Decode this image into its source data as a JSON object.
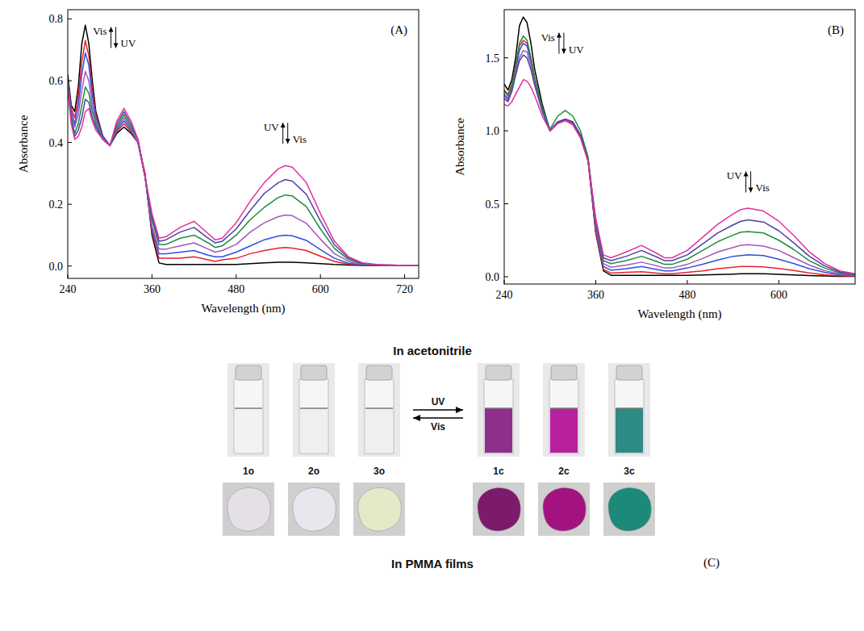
{
  "chart_data": [
    {
      "type": "line",
      "panel": "(A)",
      "x_label": "Wavelength (nm)",
      "y_label": "Absorbance",
      "xlim": [
        240,
        740
      ],
      "xticks": [
        240,
        360,
        480,
        600,
        720
      ],
      "ylim": [
        -0.04,
        0.83
      ],
      "yticks": [
        {
          "value": 0,
          "label": "0.0"
        },
        0.2,
        0.4,
        0.6,
        0.8
      ],
      "grid": false,
      "x": [
        240,
        245,
        250,
        255,
        260,
        265,
        270,
        275,
        280,
        290,
        300,
        310,
        320,
        330,
        340,
        350,
        360,
        370,
        380,
        400,
        420,
        440,
        450,
        460,
        480,
        500,
        520,
        540,
        550,
        560,
        580,
        600,
        620,
        640,
        660,
        680,
        700,
        720,
        740
      ],
      "series": [
        {
          "color": "#000000",
          "values": [
            0.62,
            0.52,
            0.5,
            0.58,
            0.72,
            0.78,
            0.72,
            0.6,
            0.5,
            0.42,
            0.39,
            0.43,
            0.45,
            0.43,
            0.4,
            0.3,
            0.1,
            0.01,
            0.005,
            0.005,
            0.005,
            0.005,
            0.005,
            0.005,
            0.005,
            0.008,
            0.01,
            0.012,
            0.012,
            0.012,
            0.01,
            0.008,
            0.005,
            0.003,
            0.002,
            0.002,
            0.002,
            0.002,
            0.002
          ]
        },
        {
          "color": "#e8212a",
          "values": [
            0.61,
            0.51,
            0.48,
            0.55,
            0.66,
            0.73,
            0.68,
            0.57,
            0.49,
            0.42,
            0.39,
            0.435,
            0.46,
            0.435,
            0.4,
            0.3,
            0.11,
            0.025,
            0.025,
            0.025,
            0.03,
            0.02,
            0.015,
            0.02,
            0.025,
            0.04,
            0.05,
            0.058,
            0.06,
            0.058,
            0.05,
            0.032,
            0.015,
            0.006,
            0.003,
            0.002,
            0.002,
            0.002,
            0.002
          ]
        },
        {
          "color": "#2f4fe0",
          "values": [
            0.6,
            0.5,
            0.46,
            0.52,
            0.62,
            0.69,
            0.65,
            0.55,
            0.48,
            0.42,
            0.39,
            0.44,
            0.47,
            0.44,
            0.4,
            0.29,
            0.12,
            0.04,
            0.04,
            0.045,
            0.05,
            0.035,
            0.03,
            0.03,
            0.045,
            0.065,
            0.085,
            0.097,
            0.1,
            0.098,
            0.083,
            0.053,
            0.025,
            0.009,
            0.004,
            0.003,
            0.002,
            0.002,
            0.002
          ]
        },
        {
          "color": "#a455bd",
          "values": [
            0.6,
            0.49,
            0.45,
            0.49,
            0.57,
            0.63,
            0.6,
            0.52,
            0.47,
            0.41,
            0.39,
            0.445,
            0.48,
            0.445,
            0.4,
            0.29,
            0.13,
            0.055,
            0.055,
            0.065,
            0.075,
            0.055,
            0.045,
            0.05,
            0.07,
            0.11,
            0.14,
            0.16,
            0.165,
            0.163,
            0.138,
            0.087,
            0.04,
            0.015,
            0.005,
            0.003,
            0.002,
            0.002,
            0.002
          ]
        },
        {
          "color": "#1e8c3a",
          "values": [
            0.59,
            0.48,
            0.43,
            0.46,
            0.52,
            0.58,
            0.56,
            0.5,
            0.46,
            0.41,
            0.39,
            0.45,
            0.49,
            0.45,
            0.41,
            0.29,
            0.15,
            0.07,
            0.07,
            0.09,
            0.1,
            0.075,
            0.06,
            0.065,
            0.1,
            0.15,
            0.19,
            0.222,
            0.23,
            0.227,
            0.192,
            0.12,
            0.057,
            0.021,
            0.007,
            0.004,
            0.003,
            0.002,
            0.002
          ]
        },
        {
          "color": "#4b42a8",
          "values": [
            0.58,
            0.47,
            0.42,
            0.44,
            0.48,
            0.54,
            0.53,
            0.48,
            0.45,
            0.41,
            0.39,
            0.46,
            0.5,
            0.46,
            0.41,
            0.29,
            0.16,
            0.08,
            0.085,
            0.11,
            0.125,
            0.09,
            0.075,
            0.08,
            0.12,
            0.18,
            0.235,
            0.27,
            0.28,
            0.275,
            0.232,
            0.146,
            0.069,
            0.026,
            0.009,
            0.004,
            0.003,
            0.002,
            0.002
          ]
        },
        {
          "color": "#e2329c",
          "values": [
            0.57,
            0.46,
            0.41,
            0.42,
            0.45,
            0.5,
            0.51,
            0.47,
            0.44,
            0.41,
            0.39,
            0.47,
            0.51,
            0.47,
            0.41,
            0.29,
            0.17,
            0.09,
            0.095,
            0.125,
            0.145,
            0.105,
            0.085,
            0.09,
            0.14,
            0.21,
            0.27,
            0.315,
            0.325,
            0.32,
            0.27,
            0.17,
            0.08,
            0.03,
            0.01,
            0.005,
            0.003,
            0.002,
            0.002
          ]
        }
      ],
      "annotations": [
        {
          "text_up": "Vis",
          "text_down": "UV",
          "x": 305,
          "y": 0.74
        },
        {
          "text_up": "UV",
          "text_down": "Vis",
          "x": 550,
          "y": 0.43
        }
      ]
    },
    {
      "type": "line",
      "panel": "(B)",
      "x_label": "Wavelength (nm)",
      "y_label": "Absorbance",
      "xlim": [
        240,
        700
      ],
      "xticks": [
        240,
        360,
        480,
        600
      ],
      "ylim": [
        -0.05,
        1.83
      ],
      "yticks": [
        {
          "value": 0,
          "label": "0.0"
        },
        0.5,
        {
          "value": 1,
          "label": "1.0"
        },
        1.5
      ],
      "grid": false,
      "x": [
        240,
        245,
        250,
        255,
        260,
        265,
        270,
        275,
        280,
        290,
        300,
        310,
        320,
        330,
        340,
        350,
        360,
        370,
        380,
        400,
        420,
        440,
        450,
        460,
        480,
        500,
        520,
        540,
        550,
        560,
        580,
        600,
        620,
        640,
        660,
        680,
        700
      ],
      "series": [
        {
          "color": "#000000",
          "values": [
            1.32,
            1.28,
            1.35,
            1.5,
            1.72,
            1.78,
            1.74,
            1.6,
            1.42,
            1.18,
            1.0,
            1.05,
            1.08,
            1.06,
            0.97,
            0.8,
            0.3,
            0.04,
            0.01,
            0.01,
            0.01,
            0.01,
            0.01,
            0.01,
            0.01,
            0.012,
            0.015,
            0.018,
            0.02,
            0.02,
            0.02,
            0.016,
            0.012,
            0.008,
            0.005,
            0.003,
            0.002
          ]
        },
        {
          "color": "#e8212a",
          "values": [
            1.28,
            1.25,
            1.32,
            1.45,
            1.58,
            1.62,
            1.6,
            1.5,
            1.36,
            1.15,
            1.0,
            1.05,
            1.07,
            1.05,
            0.96,
            0.79,
            0.31,
            0.05,
            0.025,
            0.03,
            0.035,
            0.025,
            0.02,
            0.02,
            0.03,
            0.04,
            0.055,
            0.065,
            0.07,
            0.07,
            0.068,
            0.057,
            0.042,
            0.026,
            0.014,
            0.007,
            0.004
          ]
        },
        {
          "color": "#2f4fe0",
          "values": [
            1.25,
            1.22,
            1.3,
            1.42,
            1.55,
            1.6,
            1.58,
            1.48,
            1.35,
            1.15,
            1.0,
            1.06,
            1.08,
            1.06,
            0.97,
            0.8,
            0.33,
            0.07,
            0.045,
            0.055,
            0.07,
            0.05,
            0.04,
            0.04,
            0.06,
            0.085,
            0.115,
            0.14,
            0.145,
            0.15,
            0.145,
            0.12,
            0.09,
            0.055,
            0.03,
            0.013,
            0.007
          ]
        },
        {
          "color": "#a455bd",
          "values": [
            1.24,
            1.21,
            1.28,
            1.4,
            1.5,
            1.55,
            1.54,
            1.45,
            1.33,
            1.14,
            1.0,
            1.06,
            1.08,
            1.06,
            0.97,
            0.8,
            0.34,
            0.09,
            0.065,
            0.08,
            0.1,
            0.075,
            0.06,
            0.06,
            0.085,
            0.125,
            0.17,
            0.2,
            0.215,
            0.22,
            0.21,
            0.18,
            0.13,
            0.08,
            0.042,
            0.019,
            0.01
          ]
        },
        {
          "color": "#1e8c3a",
          "values": [
            1.27,
            1.24,
            1.31,
            1.44,
            1.6,
            1.65,
            1.62,
            1.5,
            1.36,
            1.16,
            1.01,
            1.1,
            1.14,
            1.1,
            1.0,
            0.82,
            0.37,
            0.11,
            0.09,
            0.11,
            0.14,
            0.105,
            0.085,
            0.085,
            0.12,
            0.18,
            0.24,
            0.285,
            0.305,
            0.31,
            0.3,
            0.25,
            0.185,
            0.11,
            0.06,
            0.026,
            0.013
          ]
        },
        {
          "color": "#4b42a8",
          "values": [
            1.22,
            1.2,
            1.27,
            1.38,
            1.48,
            1.52,
            1.5,
            1.42,
            1.31,
            1.13,
            1.0,
            1.06,
            1.08,
            1.06,
            0.97,
            0.8,
            0.38,
            0.13,
            0.11,
            0.14,
            0.18,
            0.135,
            0.11,
            0.11,
            0.15,
            0.225,
            0.3,
            0.355,
            0.38,
            0.39,
            0.375,
            0.315,
            0.23,
            0.14,
            0.075,
            0.033,
            0.017
          ]
        },
        {
          "color": "#e2329c",
          "values": [
            1.18,
            1.17,
            1.2,
            1.25,
            1.3,
            1.35,
            1.34,
            1.3,
            1.24,
            1.1,
            1.0,
            1.05,
            1.07,
            1.04,
            0.95,
            0.79,
            0.4,
            0.15,
            0.13,
            0.17,
            0.215,
            0.16,
            0.13,
            0.13,
            0.18,
            0.27,
            0.36,
            0.43,
            0.46,
            0.47,
            0.45,
            0.38,
            0.28,
            0.17,
            0.09,
            0.04,
            0.02
          ]
        }
      ],
      "annotations": [
        {
          "text_up": "Vis",
          "text_down": "UV",
          "x": 315,
          "y": 1.6
        },
        {
          "text_up": "UV",
          "text_down": "Vis",
          "x": 560,
          "y": 0.65
        }
      ]
    }
  ],
  "panel_c": {
    "label": "(C)",
    "top_title": "In acetonitrile",
    "bottom_title": "In PMMA films",
    "forward": "UV",
    "backward": "Vis",
    "open": [
      {
        "label": "1o",
        "solution": "#f3f1f3",
        "film": "#e4e0e6"
      },
      {
        "label": "2o",
        "solution": "#f1eef1",
        "film": "#e9e7ed"
      },
      {
        "label": "3o",
        "solution": "#eef0ee",
        "film": "#e6e9c8"
      }
    ],
    "closed": [
      {
        "label": "1c",
        "solution": "#8e2f8c",
        "film": "#7c1a6c"
      },
      {
        "label": "2c",
        "solution": "#b8219e",
        "film": "#a3137f"
      },
      {
        "label": "3c",
        "solution": "#2e8a85",
        "film": "#1c8a78"
      }
    ]
  }
}
